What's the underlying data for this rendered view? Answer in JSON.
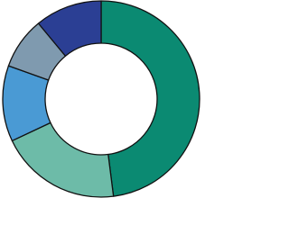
{
  "chart_data": {
    "type": "donut",
    "values": [
      48,
      20,
      12.5,
      8.5,
      11
    ],
    "colors": [
      "#0b8a72",
      "#6dbba8",
      "#4a9ad4",
      "#7f9aaf",
      "#2b3f94"
    ]
  }
}
